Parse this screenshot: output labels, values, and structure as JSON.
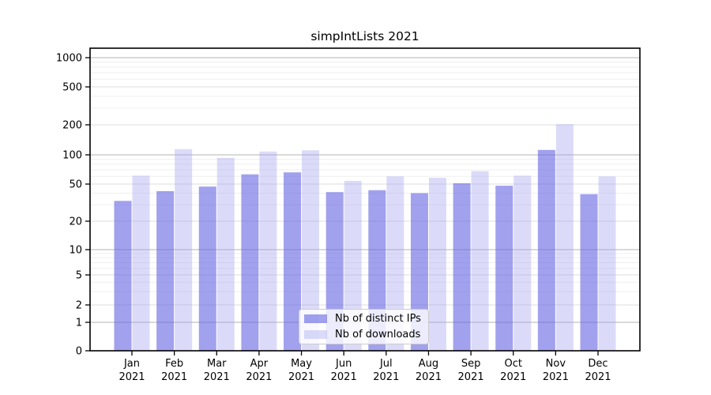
{
  "chart_data": {
    "type": "bar",
    "title": "simpIntLists 2021",
    "categories": [
      "Jan",
      "Feb",
      "Mar",
      "Apr",
      "May",
      "Jun",
      "Jul",
      "Aug",
      "Sep",
      "Oct",
      "Nov",
      "Dec"
    ],
    "x_tick_year": "2021",
    "series": [
      {
        "name": "Nb of distinct IPs",
        "color": "rgba(103,103,228,0.62)",
        "values": [
          33,
          42,
          47,
          63,
          66,
          41,
          43,
          40,
          51,
          48,
          112,
          39
        ]
      },
      {
        "name": "Nb of downloads",
        "color": "rgba(160,160,240,0.38)",
        "values": [
          61,
          114,
          93,
          108,
          111,
          54,
          60,
          58,
          68,
          61,
          203,
          60
        ]
      }
    ],
    "yticks": [
      0,
      1,
      2,
      5,
      10,
      20,
      50,
      100,
      200,
      500,
      1000
    ],
    "yscale": "symlog",
    "ylim": [
      0,
      1000
    ],
    "grid": "horizontal",
    "legend_position": "lower-center",
    "colors": {
      "major_gridline": "#b3b3b3",
      "sub_gridline": "#dedede",
      "minor_gridline": "#efefef",
      "axis": "#000000"
    }
  }
}
